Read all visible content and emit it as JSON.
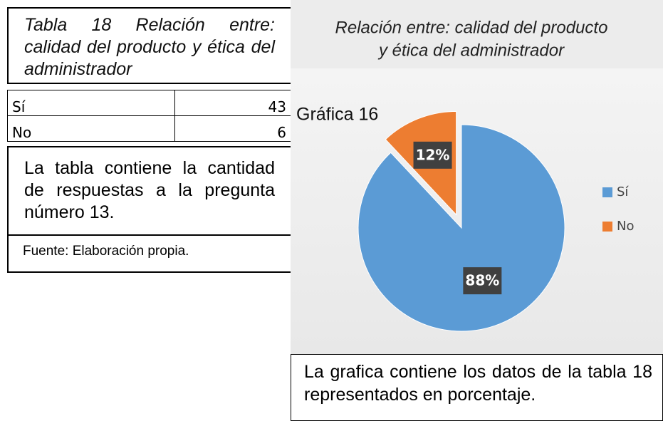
{
  "table_caption": "Tabla 18 Relación entre: calidad del producto y ética del administrador",
  "table": {
    "rows": [
      [
        "Sí",
        43
      ],
      [
        "No",
        6
      ]
    ]
  },
  "table_note": "La tabla contiene la cantidad de respuestas a la pregunta número 13.",
  "source": "Fuente: Elaboración propia.",
  "figure_label": "Gráfica 16",
  "chart_data": {
    "type": "pie",
    "title": "Relación entre: calidad del producto y ética del administrador",
    "categories": [
      "Sí",
      "No"
    ],
    "values": [
      88,
      12
    ],
    "value_labels": [
      "88%",
      "12%"
    ],
    "colors": [
      "#5b9bd5",
      "#ed7d31"
    ],
    "legend": "right",
    "exploded": [
      false,
      true
    ]
  },
  "chart_caption": "La grafica contiene los datos de la tabla 18 representados en porcentaje."
}
